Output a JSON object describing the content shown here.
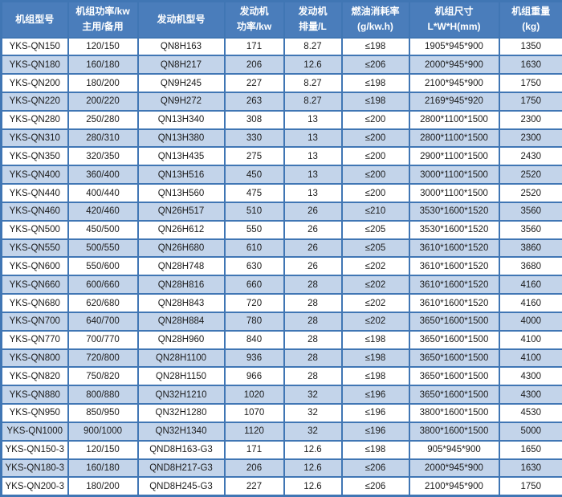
{
  "colors": {
    "header_bg": "#4A7DBB",
    "header_text": "#FFFFFF",
    "border": "#4076B4",
    "row_alt_bg": "#C3D4EA",
    "row_bg": "#FFFFFF",
    "cell_text": "#1C1C1C"
  },
  "chart_data": {
    "type": "table",
    "title": "",
    "legend": [],
    "columns": [
      {
        "id": "unit-model",
        "lines": [
          "机组型号"
        ]
      },
      {
        "id": "unit-power",
        "lines": [
          "机组功率/kw",
          "主用/备用"
        ]
      },
      {
        "id": "engine-model",
        "lines": [
          "发动机型号"
        ]
      },
      {
        "id": "engine-power",
        "lines": [
          "发动机",
          "功率/kw"
        ]
      },
      {
        "id": "displacement",
        "lines": [
          "发动机",
          "排量/L"
        ]
      },
      {
        "id": "fuel-rate",
        "lines": [
          "燃油消耗率",
          "(g/kw.h)"
        ]
      },
      {
        "id": "dimensions",
        "lines": [
          "机组尺寸",
          "L*W*H(mm)"
        ]
      },
      {
        "id": "weight",
        "lines": [
          "机组重量",
          "(kg)"
        ]
      }
    ],
    "rows": [
      [
        "YKS-QN150",
        "120/150",
        "QN8H163",
        "171",
        "8.27",
        "≤198",
        "1905*945*900",
        "1350"
      ],
      [
        "YKS-QN180",
        "160/180",
        "QN8H217",
        "206",
        "12.6",
        "≤206",
        "2000*945*900",
        "1630"
      ],
      [
        "YKS-QN200",
        "180/200",
        "QN9H245",
        "227",
        "8.27",
        "≤198",
        "2100*945*900",
        "1750"
      ],
      [
        "YKS-QN220",
        "200/220",
        "QN9H272",
        "263",
        "8.27",
        "≤198",
        "2169*945*920",
        "1750"
      ],
      [
        "YKS-QN280",
        "250/280",
        "QN13H340",
        "308",
        "13",
        "≤200",
        "2800*1100*1500",
        "2300"
      ],
      [
        "YKS-QN310",
        "280/310",
        "QN13H380",
        "330",
        "13",
        "≤200",
        "2800*1100*1500",
        "2300"
      ],
      [
        "YKS-QN350",
        "320/350",
        "QN13H435",
        "275",
        "13",
        "≤200",
        "2900*1100*1500",
        "2430"
      ],
      [
        "YKS-QN400",
        "360/400",
        "QN13H516",
        "450",
        "13",
        "≤200",
        "3000*1100*1500",
        "2520"
      ],
      [
        "YKS-QN440",
        "400/440",
        "QN13H560",
        "475",
        "13",
        "≤200",
        "3000*1100*1500",
        "2520"
      ],
      [
        "YKS-QN460",
        "420/460",
        "QN26H517",
        "510",
        "26",
        "≤210",
        "3530*1600*1520",
        "3560"
      ],
      [
        "YKS-QN500",
        "450/500",
        "QN26H612",
        "550",
        "26",
        "≤205",
        "3530*1600*1520",
        "3560"
      ],
      [
        "YKS-QN550",
        "500/550",
        "QN26H680",
        "610",
        "26",
        "≤205",
        "3610*1600*1520",
        "3860"
      ],
      [
        "YKS-QN600",
        "550/600",
        "QN28H748",
        "630",
        "26",
        "≤202",
        "3610*1600*1520",
        "3680"
      ],
      [
        "YKS-QN660",
        "600/660",
        "QN28H816",
        "660",
        "28",
        "≤202",
        "3610*1600*1520",
        "4160"
      ],
      [
        "YKS-QN680",
        "620/680",
        "QN28H843",
        "720",
        "28",
        "≤202",
        "3610*1600*1520",
        "4160"
      ],
      [
        "YKS-QN700",
        "640/700",
        "QN28H884",
        "780",
        "28",
        "≤202",
        "3650*1600*1500",
        "4000"
      ],
      [
        "YKS-QN770",
        "700/770",
        "QN28H960",
        "840",
        "28",
        "≤198",
        "3650*1600*1500",
        "4100"
      ],
      [
        "YKS-QN800",
        "720/800",
        "QN28H1100",
        "936",
        "28",
        "≤198",
        "3650*1600*1500",
        "4100"
      ],
      [
        "YKS-QN820",
        "750/820",
        "QN28H1150",
        "966",
        "28",
        "≤198",
        "3650*1600*1500",
        "4300"
      ],
      [
        "YKS-QN880",
        "800/880",
        "QN32H1210",
        "1020",
        "32",
        "≤196",
        "3650*1600*1500",
        "4300"
      ],
      [
        "YKS-QN950",
        "850/950",
        "QN32H1280",
        "1070",
        "32",
        "≤196",
        "3800*1600*1500",
        "4530"
      ],
      [
        "YKS-QN1000",
        "900/1000",
        "QN32H1340",
        "1120",
        "32",
        "≤196",
        "3800*1600*1500",
        "5000"
      ],
      [
        "YKS-QN150-3",
        "120/150",
        "QND8H163-G3",
        "171",
        "12.6",
        "≤198",
        "905*945*900",
        "1650"
      ],
      [
        "YKS-QN180-3",
        "160/180",
        "QND8H217-G3",
        "206",
        "12.6",
        "≤206",
        "2000*945*900",
        "1630"
      ],
      [
        "YKS-QN200-3",
        "180/200",
        "QND8H245-G3",
        "227",
        "12.6",
        "≤206",
        "2100*945*900",
        "1750"
      ]
    ]
  }
}
